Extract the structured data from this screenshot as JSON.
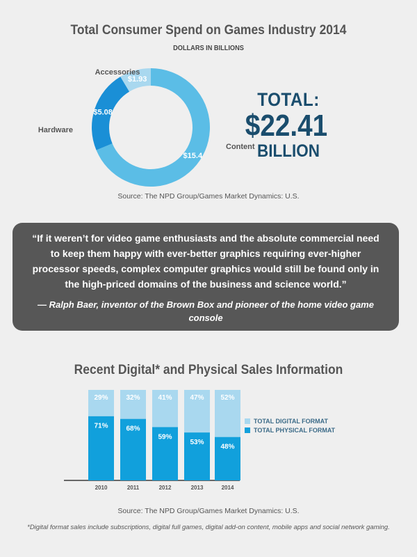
{
  "header": {
    "title": "Total Consumer Spend on Games Industry 2014",
    "subtitle": "DOLLARS IN BILLIONS"
  },
  "total": {
    "label": "TOTAL:",
    "amount": "$22.41",
    "unit": "BILLION"
  },
  "source_1": "Source: The NPD Group/Games Market Dynamics: U.S.",
  "quote": {
    "text": "“If it weren’t for video game enthusiasts and the absolute commercial need to keep them happy with ever-better graphics requiring ever-higher processor speeds, complex computer graphics would still be found only in the high-priced domains of the business and science world.”",
    "author": "— Ralph Baer, inventor of the Brown Box and pioneer of the home video game console"
  },
  "section2": {
    "title": "Recent Digital* and Physical Sales Information"
  },
  "source_2": "Source: The NPD Group/Games Market Dynamics: U.S.",
  "footnote": "*Digital format sales include subscriptions, digital full games, digital add-on content, mobile apps and social network gaming.",
  "colors": {
    "content": "#5bbde6",
    "hardware": "#1a8fd6",
    "accessories": "#a9d8ef",
    "digital": "#a9d8ef",
    "physical": "#11a0dc",
    "total_text": "#1a4d6d"
  },
  "chart_data": [
    {
      "type": "pie",
      "variant": "donut",
      "slices": [
        {
          "name": "Content",
          "value": 15.4,
          "label": "$15.4"
        },
        {
          "name": "Hardware",
          "value": 5.08,
          "label": "$5.08"
        },
        {
          "name": "Accessories",
          "value": 1.93,
          "label": "$1.93"
        }
      ]
    },
    {
      "type": "bar",
      "stacked": true,
      "categories": [
        "2010",
        "2011",
        "2012",
        "2013",
        "2014"
      ],
      "series": [
        {
          "name": "TOTAL PHYSICAL FORMAT",
          "values": [
            71,
            68,
            59,
            53,
            48
          ],
          "labels": [
            "71%",
            "68%",
            "59%",
            "53%",
            "48%"
          ]
        },
        {
          "name": "TOTAL DIGITAL FORMAT",
          "values": [
            29,
            32,
            41,
            47,
            52
          ],
          "labels": [
            "29%",
            "32%",
            "41%",
            "47%",
            "52%"
          ]
        }
      ],
      "legend": "right",
      "ylim": [
        0,
        100
      ]
    }
  ]
}
